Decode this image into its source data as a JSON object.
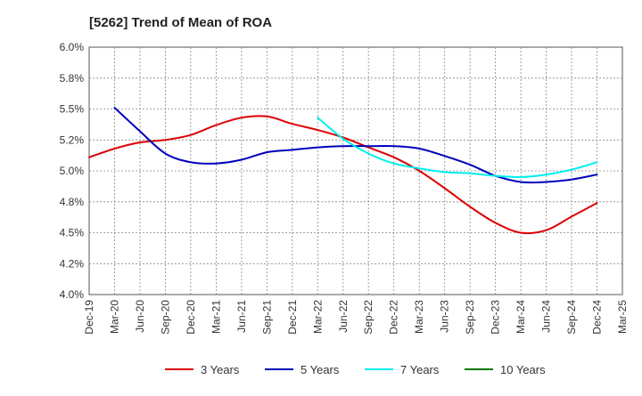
{
  "chart_data": {
    "type": "line",
    "title": "[5262]  Trend of Mean of ROA",
    "xlabel": "",
    "ylabel": "",
    "ylim": [
      4.0,
      6.0
    ],
    "ytick_values": [
      4.0,
      4.25,
      4.5,
      4.75,
      5.0,
      5.25,
      5.5,
      5.75,
      6.0
    ],
    "ytick_labels": [
      "4.0%",
      "4.2%",
      "4.5%",
      "4.8%",
      "5.0%",
      "5.2%",
      "5.5%",
      "5.8%",
      "6.0%"
    ],
    "categories": [
      "Dec-19",
      "Mar-20",
      "Jun-20",
      "Sep-20",
      "Dec-20",
      "Mar-21",
      "Jun-21",
      "Sep-21",
      "Dec-21",
      "Mar-22",
      "Jun-22",
      "Sep-22",
      "Dec-22",
      "Mar-23",
      "Jun-23",
      "Sep-23",
      "Dec-23",
      "Mar-24",
      "Jun-24",
      "Sep-24",
      "Dec-24",
      "Mar-25"
    ],
    "grid": true,
    "legend_position": "bottom",
    "series": [
      {
        "name": "3 Years",
        "color": "#dd0000",
        "values": [
          5.11,
          5.18,
          5.23,
          5.25,
          5.29,
          5.37,
          5.43,
          5.44,
          5.38,
          5.33,
          5.27,
          5.19,
          5.11,
          5.0,
          4.86,
          4.71,
          4.58,
          4.5,
          4.52,
          4.63,
          4.74,
          null
        ]
      },
      {
        "name": "5 Years",
        "color": "#0000bb",
        "values": [
          null,
          5.51,
          5.32,
          5.14,
          5.07,
          5.06,
          5.09,
          5.15,
          5.17,
          5.19,
          5.2,
          5.2,
          5.2,
          5.18,
          5.12,
          5.05,
          4.96,
          4.91,
          4.91,
          4.93,
          4.97,
          null
        ]
      },
      {
        "name": "7 Years",
        "color": "#00eeee",
        "values": [
          null,
          null,
          null,
          null,
          null,
          null,
          null,
          null,
          null,
          5.43,
          5.26,
          5.14,
          5.06,
          5.02,
          4.99,
          4.98,
          4.96,
          4.95,
          4.97,
          5.01,
          5.07,
          null
        ]
      },
      {
        "name": "10 Years",
        "color": "#007700",
        "values": [
          null,
          null,
          null,
          null,
          null,
          null,
          null,
          null,
          null,
          null,
          null,
          null,
          null,
          null,
          null,
          null,
          null,
          null,
          null,
          null,
          null,
          null
        ]
      }
    ]
  }
}
